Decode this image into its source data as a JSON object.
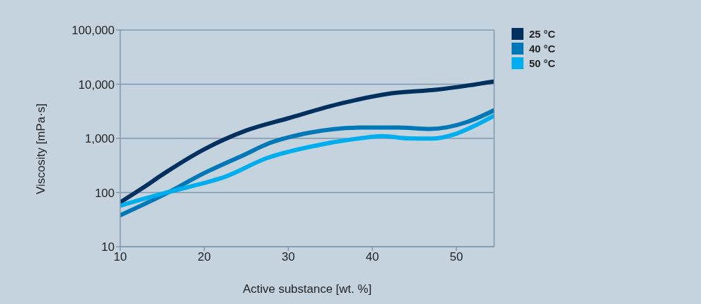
{
  "chart_data": {
    "type": "line",
    "xlabel": "Active substance [wt. %]",
    "ylabel": "Viscosity [mPa·s]",
    "log": "y",
    "grid": "y",
    "legend": "top right",
    "xlim": [
      10,
      54.5
    ],
    "xticks": [
      10,
      20,
      30,
      40,
      50
    ],
    "ylim": [
      10,
      100000
    ],
    "yticks": [
      {
        "value": 10,
        "label": "10"
      },
      {
        "value": 100,
        "label": "100"
      },
      {
        "value": 1000,
        "label": "1,000"
      },
      {
        "value": 10000,
        "label": "10,000"
      },
      {
        "value": 100000,
        "label": "100,000"
      }
    ],
    "series": [
      {
        "name": "25 °C",
        "color": "#00315e",
        "x": [
          10,
          12.7,
          15.3,
          20,
          24.9,
          30,
          36.4,
          42.3,
          47.7,
          51.5,
          54.5
        ],
        "values": [
          66,
          122,
          229,
          630,
          1380,
          2350,
          4460,
          6780,
          7950,
          9530,
          11300
        ]
      },
      {
        "name": "40 °C",
        "color": "#0077b6",
        "x": [
          10,
          15.3,
          20,
          24.9,
          27.6,
          32.6,
          38.5,
          43,
          46.9,
          51.3,
          54.5
        ],
        "values": [
          38,
          93,
          229,
          510,
          800,
          1280,
          1580,
          1580,
          1490,
          2010,
          3300
        ]
      },
      {
        "name": "50 °C",
        "color": "#00aeef",
        "x": [
          10,
          15.3,
          18,
          22.5,
          27.5,
          32.6,
          38.5,
          41.2,
          44.4,
          47.1,
          49.8,
          51.9,
          54.5
        ],
        "values": [
          57,
          98,
          125,
          196,
          435,
          700,
          1000,
          1100,
          1000,
          990,
          1190,
          1630,
          2620
        ]
      }
    ]
  }
}
